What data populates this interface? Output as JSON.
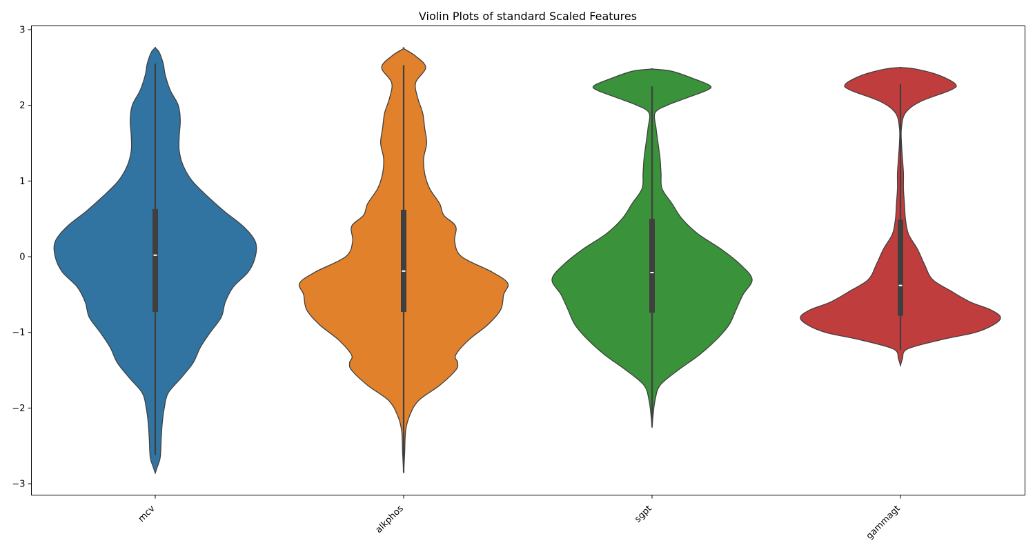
{
  "chart_data": {
    "type": "violin",
    "title": "Violin Plots of standard Scaled Features",
    "xlabel": "",
    "ylabel": "",
    "ylim": [
      -3.15,
      3.05
    ],
    "yticks": [
      -3,
      -2,
      -1,
      0,
      1,
      2,
      3
    ],
    "ytick_labels": [
      "−3",
      "−2",
      "−1",
      "0",
      "1",
      "2",
      "3"
    ],
    "grid": false,
    "categories": [
      "mcv",
      "alkphos",
      "sgpt",
      "gammagt"
    ],
    "series": [
      {
        "category": "mcv",
        "color": "#3274a1",
        "whisker": [
          -2.62,
          2.55
        ],
        "q1": -0.73,
        "median": 0.02,
        "q3": 0.63,
        "density": [
          [
            -2.86,
            0.0
          ],
          [
            -2.78,
            0.02
          ],
          [
            -2.65,
            0.05
          ],
          [
            -2.4,
            0.06
          ],
          [
            -2.2,
            0.07
          ],
          [
            -2.0,
            0.09
          ],
          [
            -1.8,
            0.13
          ],
          [
            -1.6,
            0.26
          ],
          [
            -1.4,
            0.38
          ],
          [
            -1.2,
            0.45
          ],
          [
            -1.0,
            0.55
          ],
          [
            -0.8,
            0.66
          ],
          [
            -0.6,
            0.7
          ],
          [
            -0.4,
            0.78
          ],
          [
            -0.2,
            0.93
          ],
          [
            0.0,
            1.0
          ],
          [
            0.2,
            1.0
          ],
          [
            0.4,
            0.88
          ],
          [
            0.6,
            0.69
          ],
          [
            0.8,
            0.52
          ],
          [
            1.0,
            0.37
          ],
          [
            1.2,
            0.28
          ],
          [
            1.4,
            0.24
          ],
          [
            1.6,
            0.24
          ],
          [
            1.8,
            0.25
          ],
          [
            2.0,
            0.23
          ],
          [
            2.2,
            0.15
          ],
          [
            2.4,
            0.1
          ],
          [
            2.55,
            0.08
          ],
          [
            2.7,
            0.04
          ],
          [
            2.76,
            0.0
          ]
        ]
      },
      {
        "category": "alkphos",
        "color": "#e1812c",
        "whisker": [
          -2.85,
          2.53
        ],
        "q1": -0.73,
        "median": -0.19,
        "q3": 0.62,
        "density": [
          [
            -2.86,
            0.0
          ],
          [
            -2.6,
            0.01
          ],
          [
            -2.3,
            0.02
          ],
          [
            -2.1,
            0.06
          ],
          [
            -1.9,
            0.15
          ],
          [
            -1.7,
            0.36
          ],
          [
            -1.5,
            0.52
          ],
          [
            -1.4,
            0.54
          ],
          [
            -1.3,
            0.52
          ],
          [
            -1.1,
            0.65
          ],
          [
            -0.9,
            0.84
          ],
          [
            -0.7,
            0.97
          ],
          [
            -0.5,
            1.0
          ],
          [
            -0.35,
            1.04
          ],
          [
            -0.2,
            0.88
          ],
          [
            0.0,
            0.58
          ],
          [
            0.2,
            0.51
          ],
          [
            0.4,
            0.52
          ],
          [
            0.55,
            0.4
          ],
          [
            0.7,
            0.36
          ],
          [
            0.9,
            0.26
          ],
          [
            1.1,
            0.21
          ],
          [
            1.3,
            0.2
          ],
          [
            1.5,
            0.23
          ],
          [
            1.7,
            0.21
          ],
          [
            1.9,
            0.19
          ],
          [
            2.1,
            0.14
          ],
          [
            2.3,
            0.12
          ],
          [
            2.5,
            0.22
          ],
          [
            2.65,
            0.12
          ],
          [
            2.75,
            0.0
          ]
        ]
      },
      {
        "category": "sgpt",
        "color": "#3a923a",
        "whisker": [
          -2.24,
          2.25
        ],
        "q1": -0.74,
        "median": -0.21,
        "q3": 0.5,
        "density": [
          [
            -2.26,
            0.0
          ],
          [
            -2.1,
            0.01
          ],
          [
            -1.9,
            0.03
          ],
          [
            -1.7,
            0.08
          ],
          [
            -1.5,
            0.26
          ],
          [
            -1.3,
            0.47
          ],
          [
            -1.1,
            0.64
          ],
          [
            -0.9,
            0.77
          ],
          [
            -0.7,
            0.84
          ],
          [
            -0.5,
            0.91
          ],
          [
            -0.3,
            1.0
          ],
          [
            -0.1,
            0.88
          ],
          [
            0.1,
            0.69
          ],
          [
            0.3,
            0.46
          ],
          [
            0.5,
            0.3
          ],
          [
            0.7,
            0.2
          ],
          [
            0.9,
            0.1
          ],
          [
            1.1,
            0.09
          ],
          [
            1.3,
            0.08
          ],
          [
            1.5,
            0.06
          ],
          [
            1.7,
            0.04
          ],
          [
            1.9,
            0.03
          ],
          [
            2.0,
            0.15
          ],
          [
            2.1,
            0.35
          ],
          [
            2.2,
            0.55
          ],
          [
            2.26,
            0.58
          ],
          [
            2.35,
            0.42
          ],
          [
            2.45,
            0.2
          ],
          [
            2.48,
            0.0
          ]
        ]
      },
      {
        "category": "gammagt",
        "color": "#c03d3e",
        "whisker": [
          -1.23,
          2.28
        ],
        "q1": -0.78,
        "median": -0.38,
        "q3": 0.49,
        "density": [
          [
            -1.44,
            0.0
          ],
          [
            -1.35,
            0.02
          ],
          [
            -1.22,
            0.07
          ],
          [
            -1.1,
            0.4
          ],
          [
            -1.0,
            0.75
          ],
          [
            -0.9,
            0.93
          ],
          [
            -0.8,
            1.0
          ],
          [
            -0.7,
            0.9
          ],
          [
            -0.6,
            0.7
          ],
          [
            -0.45,
            0.5
          ],
          [
            -0.3,
            0.32
          ],
          [
            -0.1,
            0.24
          ],
          [
            0.1,
            0.17
          ],
          [
            0.3,
            0.08
          ],
          [
            0.5,
            0.05
          ],
          [
            0.7,
            0.04
          ],
          [
            0.9,
            0.03
          ],
          [
            1.1,
            0.03
          ],
          [
            1.3,
            0.02
          ],
          [
            1.5,
            0.01
          ],
          [
            1.7,
            0.01
          ],
          [
            1.9,
            0.05
          ],
          [
            2.05,
            0.2
          ],
          [
            2.2,
            0.5
          ],
          [
            2.28,
            0.55
          ],
          [
            2.4,
            0.38
          ],
          [
            2.48,
            0.15
          ],
          [
            2.5,
            0.0
          ]
        ]
      }
    ]
  }
}
